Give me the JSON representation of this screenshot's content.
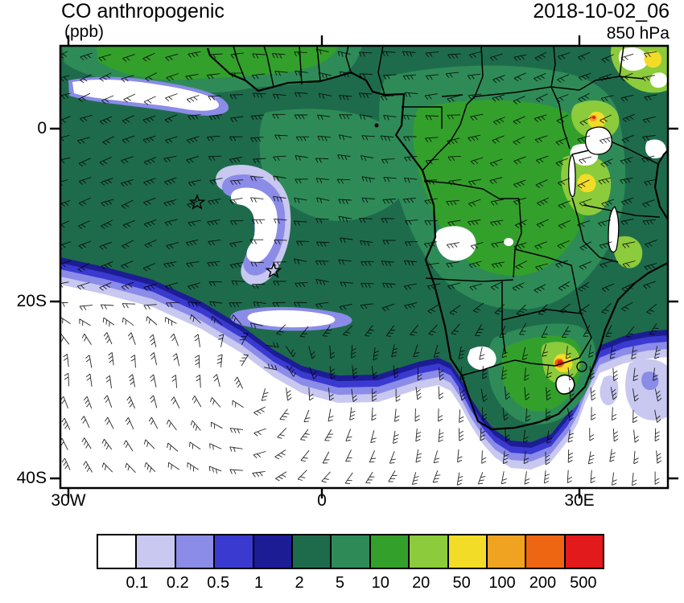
{
  "header": {
    "title": "CO anthropogenic",
    "units": "(ppb)",
    "datetime": "2018-10-02_06",
    "level": "850 hPa"
  },
  "axes": {
    "y_ticks": [
      "0",
      "20S",
      "40S"
    ],
    "x_ticks": [
      "30W",
      "0",
      "30E"
    ]
  },
  "colorbar": {
    "labels": [
      "0.1",
      "0.2",
      "0.5",
      "1",
      "2",
      "5",
      "10",
      "20",
      "50",
      "100",
      "200",
      "500"
    ],
    "colors": [
      "#FFFFFF",
      "#C8C8F0",
      "#8B8BE8",
      "#3A3AD0",
      "#1C1C94",
      "#1E6B4C",
      "#2E8B57",
      "#33A02C",
      "#8CCB3C",
      "#F2DC28",
      "#F0A221",
      "#EE6612",
      "#E31A1C"
    ]
  },
  "chart_data": {
    "type": "heatmap",
    "title": "CO anthropogenic",
    "units": "ppb",
    "valid_time": "2018-10-02_06",
    "pressure_level": "850 hPa",
    "region": "Africa and South Atlantic",
    "x_axis": {
      "ticks": [
        "30W",
        "0",
        "30E"
      ]
    },
    "y_axis": {
      "ticks": [
        "0",
        "20S",
        "40S"
      ]
    },
    "contour_levels": [
      0.1,
      0.2,
      0.5,
      1,
      2,
      5,
      10,
      20,
      50,
      100,
      200,
      500
    ],
    "palette": [
      "#FFFFFF",
      "#C8C8F0",
      "#8B8BE8",
      "#3A3AD0",
      "#1C1C94",
      "#1E6B4C",
      "#2E8B57",
      "#33A02C",
      "#8CCB3C",
      "#F2DC28",
      "#F0A221",
      "#EE6612",
      "#E31A1C"
    ],
    "overlays": [
      "wind barbs",
      "coastlines",
      "country borders",
      "lakes",
      "storm-position star markers"
    ],
    "star_markers": [
      {
        "lon_approx": "14.5W",
        "lat_approx": "8.6S"
      },
      {
        "lon_approx": "5.6W",
        "lat_approx": "16.5S"
      }
    ],
    "notable_features": [
      {
        "region": "South Atlantic subtropics south of ~22S",
        "co_ppb": "< 0.1 background"
      },
      {
        "region": "tropical Atlantic outflow plume west of Africa",
        "co_ppb": "2-10"
      },
      {
        "region": "Congo basin / central Africa",
        "co_ppb": "5-20"
      },
      {
        "region": "East African rift and lakes region",
        "co_ppb": "20-100 with local 100-500 spots"
      },
      {
        "region": "South African Highveld hotspot near 28E 26S",
        "co_ppb": "200-500+"
      },
      {
        "region": "white comma-shaped clean slots in SE Atlantic near star markers",
        "co_ppb": "0.1-0.5"
      }
    ]
  }
}
